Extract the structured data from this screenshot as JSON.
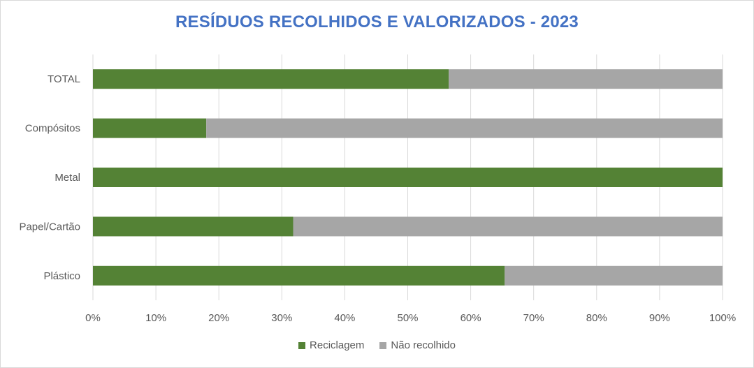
{
  "chart_data": {
    "type": "bar",
    "orientation": "horizontal",
    "stacked": "percent",
    "title": "RESÍDUOS RECOLHIDOS E VALORIZADOS - 2023",
    "categories": [
      "TOTAL",
      "Compósitos",
      "Metal",
      "Papel/Cartão",
      "Plástico"
    ],
    "series": [
      {
        "name": "Reciclagem",
        "color": "#548235",
        "values": [
          56.5,
          18.0,
          100.0,
          31.8,
          65.4
        ]
      },
      {
        "name": "Não recolhido",
        "color": "#a6a6a6",
        "values": [
          43.5,
          82.0,
          0.0,
          68.2,
          34.6
        ]
      }
    ],
    "xlim": [
      0,
      100
    ],
    "x_ticks": [
      "0%",
      "10%",
      "20%",
      "30%",
      "40%",
      "50%",
      "60%",
      "70%",
      "80%",
      "90%",
      "100%"
    ],
    "grid": true,
    "legend_position": "bottom"
  }
}
